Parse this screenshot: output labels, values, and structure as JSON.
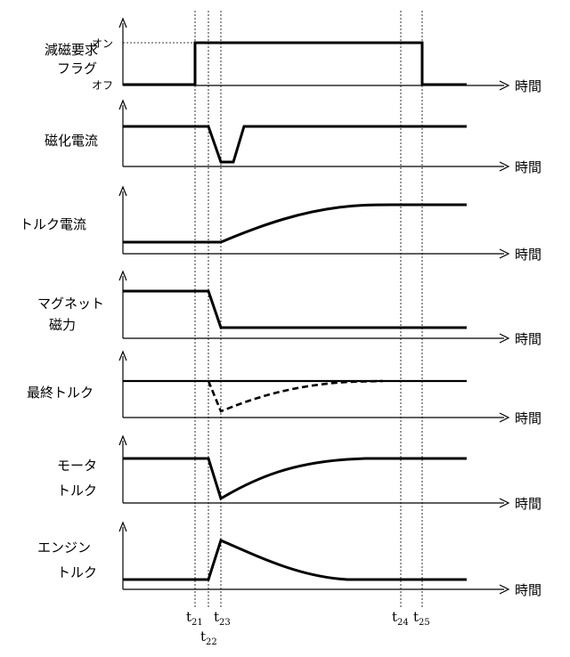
{
  "rows": [
    {
      "label": [
        "減磁要求",
        "フラグ"
      ],
      "axis_label": "時間",
      "level_labels": {
        "high": "オン",
        "low": "オフ"
      }
    },
    {
      "label": [
        "磁化電流"
      ],
      "axis_label": "時間"
    },
    {
      "label": [
        "トルク電流"
      ],
      "axis_label": "時間"
    },
    {
      "label": [
        "マグネット",
        "磁力"
      ],
      "axis_label": "時間"
    },
    {
      "label": [
        "最終トルク"
      ],
      "axis_label": "時間"
    },
    {
      "label": [
        "モータ",
        "トルク"
      ],
      "axis_label": "時間"
    },
    {
      "label": [
        "エンジン",
        "トルク"
      ],
      "axis_label": "時間"
    }
  ],
  "time_markers": [
    {
      "base": "t",
      "sub": "21"
    },
    {
      "base": "t",
      "sub": "22"
    },
    {
      "base": "t",
      "sub": "23"
    },
    {
      "base": "t",
      "sub": "24"
    },
    {
      "base": "t",
      "sub": "25"
    }
  ]
}
